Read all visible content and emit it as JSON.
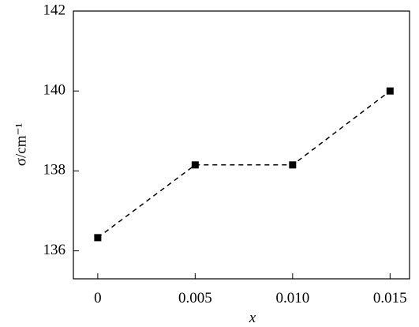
{
  "chart_data": {
    "type": "line",
    "x_label": "x",
    "y_label": "σ/cm⁻¹",
    "x": [
      0,
      0.005,
      0.01,
      0.015
    ],
    "series": [
      {
        "values": [
          136.33,
          138.15,
          138.15,
          140.0
        ],
        "color": "#000000"
      }
    ],
    "xlim": [
      -0.00125,
      0.016
    ],
    "xticks": [
      0,
      0.005,
      {
        "value": 0.01,
        "label": "0.010"
      },
      0.015
    ],
    "ylim": [
      135.3,
      142
    ],
    "yticks": [
      136,
      138,
      140,
      142
    ]
  }
}
